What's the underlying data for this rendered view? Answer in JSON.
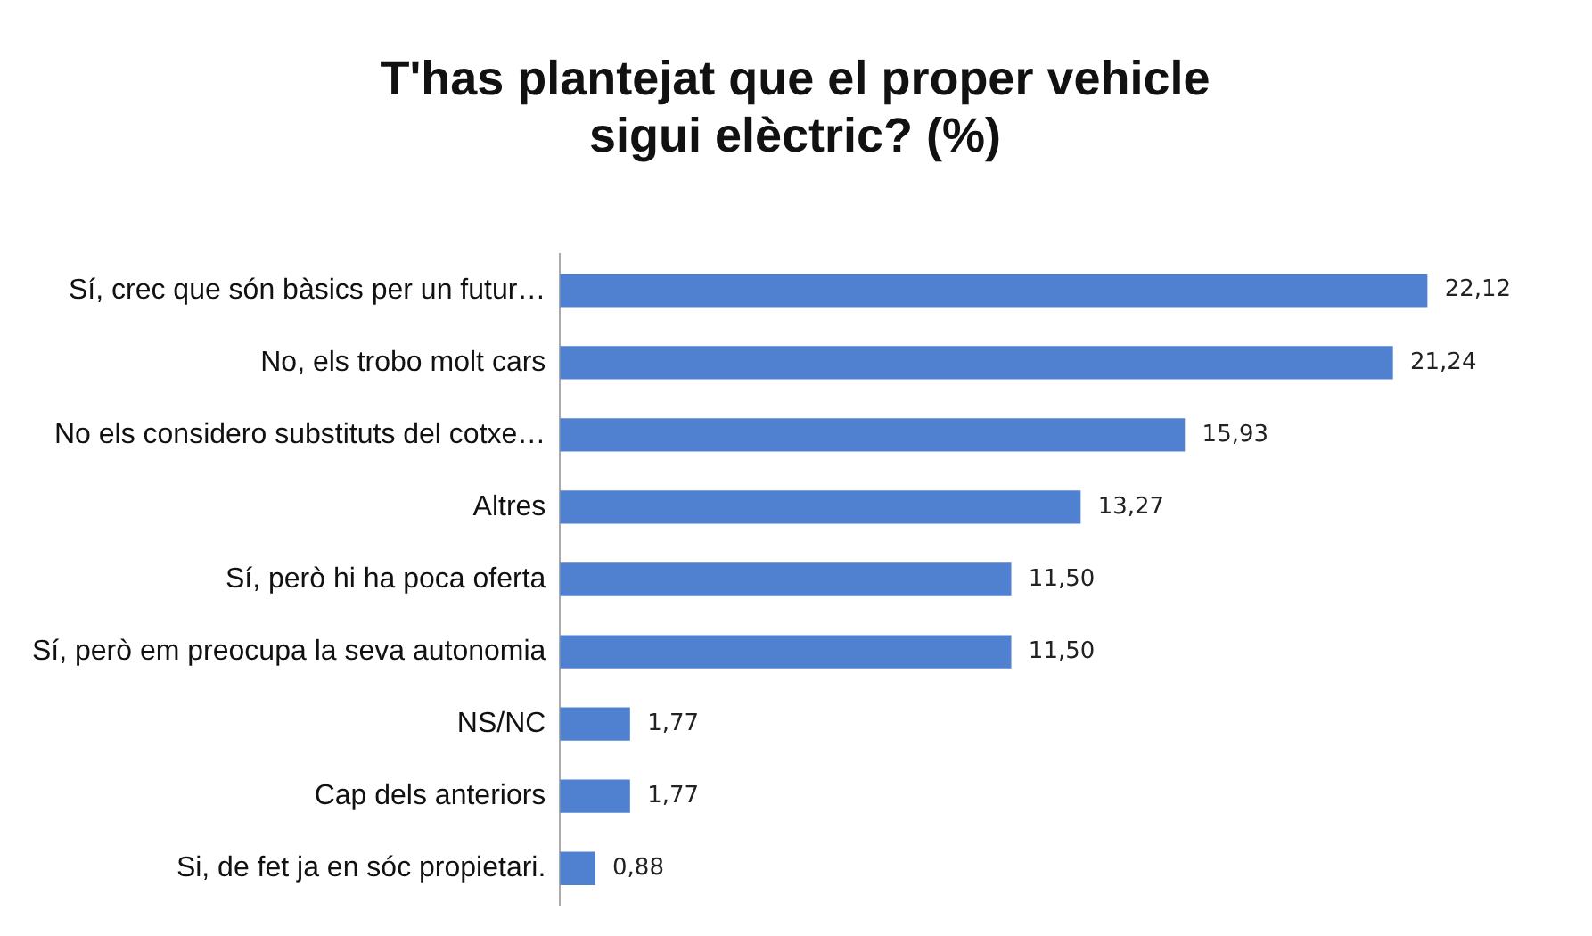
{
  "chart_data": {
    "type": "bar",
    "orientation": "horizontal",
    "title": "T'has plantejat que el proper vehicle sigui elèctric? (%)",
    "categories": [
      "Sí, crec que són bàsics per un futur…",
      "No, els trobo molt cars",
      "No els considero substituts del cotxe…",
      "Altres",
      "Sí, però hi ha poca oferta",
      "Sí, però em preocupa la seva autonomia",
      "NS/NC",
      "Cap dels anteriors",
      "Si, de fet ja en sóc propietari."
    ],
    "values": [
      22.12,
      21.24,
      15.93,
      13.27,
      11.5,
      11.5,
      1.77,
      1.77,
      0.88
    ],
    "value_labels": [
      "22,12",
      "21,24",
      "15,93",
      "13,27",
      "11,50",
      "11,50",
      "1,77",
      "1,77",
      "0,88"
    ],
    "color": "#4f81d0",
    "tick_labels": "y"
  }
}
